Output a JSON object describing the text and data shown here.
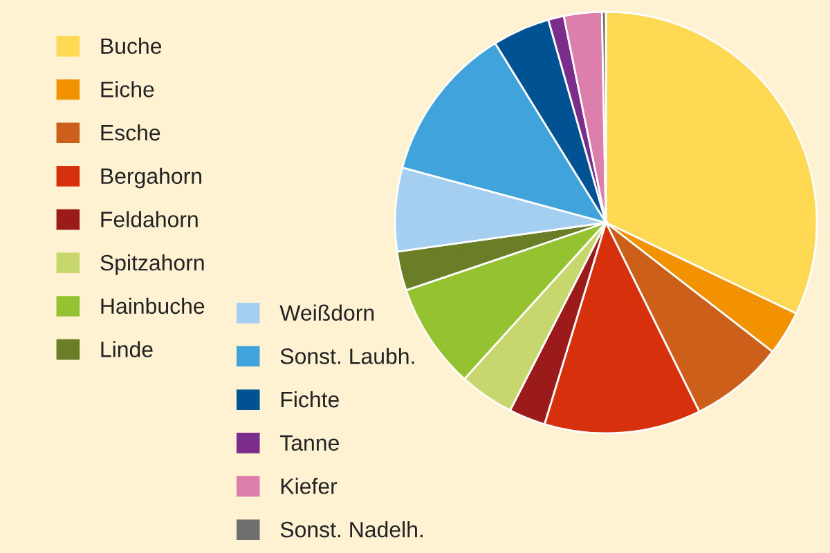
{
  "chart_data": {
    "type": "pie",
    "categories": [
      "Buche",
      "Eiche",
      "Esche",
      "Bergahorn",
      "Feldahorn",
      "Spitzahorn",
      "Hainbuche",
      "Linde",
      "Weißdorn",
      "Sonst. Laubh.",
      "Fichte",
      "Tanne",
      "Kiefer",
      "Sonst. Nadelh."
    ],
    "values": [
      32.1,
      3.4,
      7.2,
      12.0,
      2.8,
      4.2,
      8.1,
      3.0,
      6.4,
      12.0,
      4.4,
      1.2,
      2.9,
      0.3
    ],
    "colors": [
      "#ffd854",
      "#f39200",
      "#cc5f1a",
      "#d6300c",
      "#9b1a1a",
      "#c8d66e",
      "#95c230",
      "#6a7d27",
      "#a5cff0",
      "#40a3db",
      "#005293",
      "#7b2d8b",
      "#dc7fab",
      "#6f6f6f"
    ],
    "legend": "left"
  }
}
